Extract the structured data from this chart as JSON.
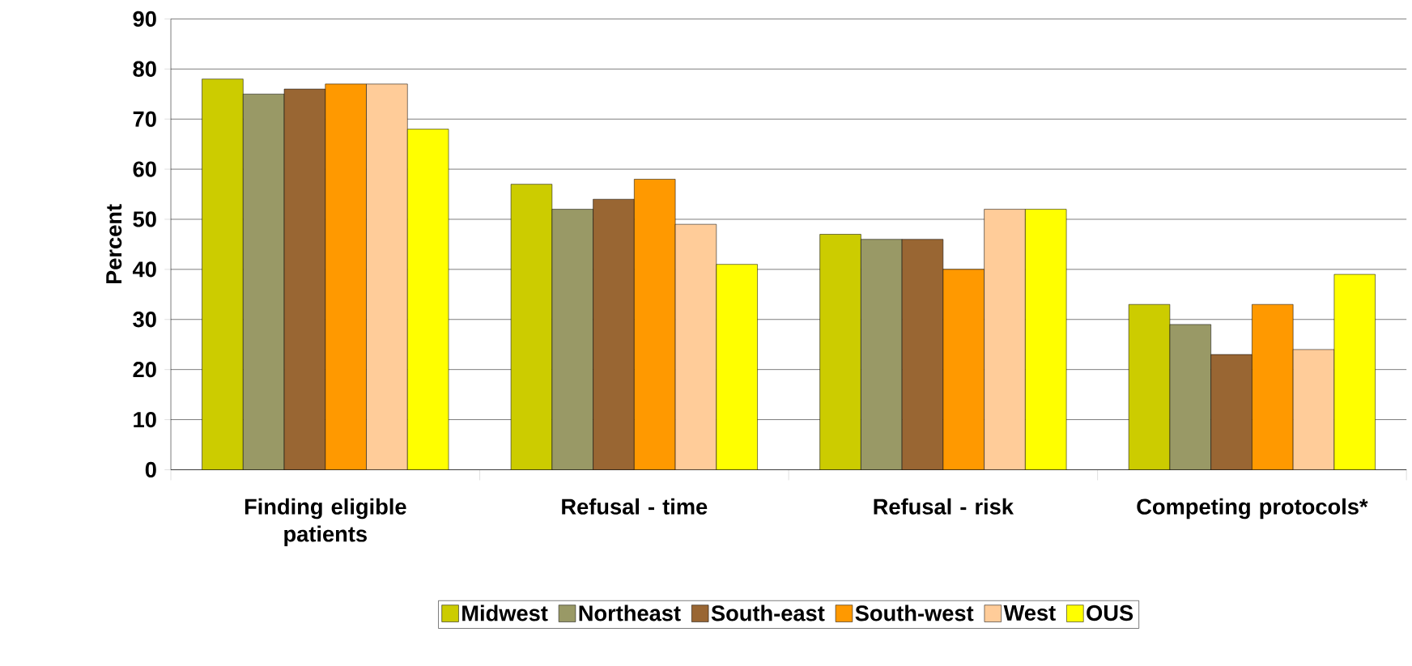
{
  "chart_data": {
    "type": "bar",
    "ylabel": "Percent",
    "categories": [
      "Finding eligible patients",
      "Refusal - time",
      "Refusal - risk",
      "Competing protocols*"
    ],
    "series": [
      {
        "name": "Midwest",
        "color": "#cccc00",
        "values": [
          78,
          57,
          47,
          33
        ]
      },
      {
        "name": "Northeast",
        "color": "#999966",
        "values": [
          75,
          52,
          46,
          29
        ]
      },
      {
        "name": "South-east",
        "color": "#996633",
        "values": [
          76,
          54,
          46,
          23
        ]
      },
      {
        "name": "South-west",
        "color": "#ff9900",
        "values": [
          77,
          58,
          40,
          33
        ]
      },
      {
        "name": "West",
        "color": "#ffcc99",
        "values": [
          77,
          49,
          52,
          24
        ]
      },
      {
        "name": "OUS",
        "color": "#ffff00",
        "values": [
          68,
          41,
          52,
          39
        ]
      }
    ],
    "ylim": [
      0,
      90
    ],
    "yticks": [
      0,
      10,
      20,
      30,
      40,
      50,
      60,
      70,
      80,
      90
    ],
    "grid": "y",
    "legend": "bottom"
  }
}
